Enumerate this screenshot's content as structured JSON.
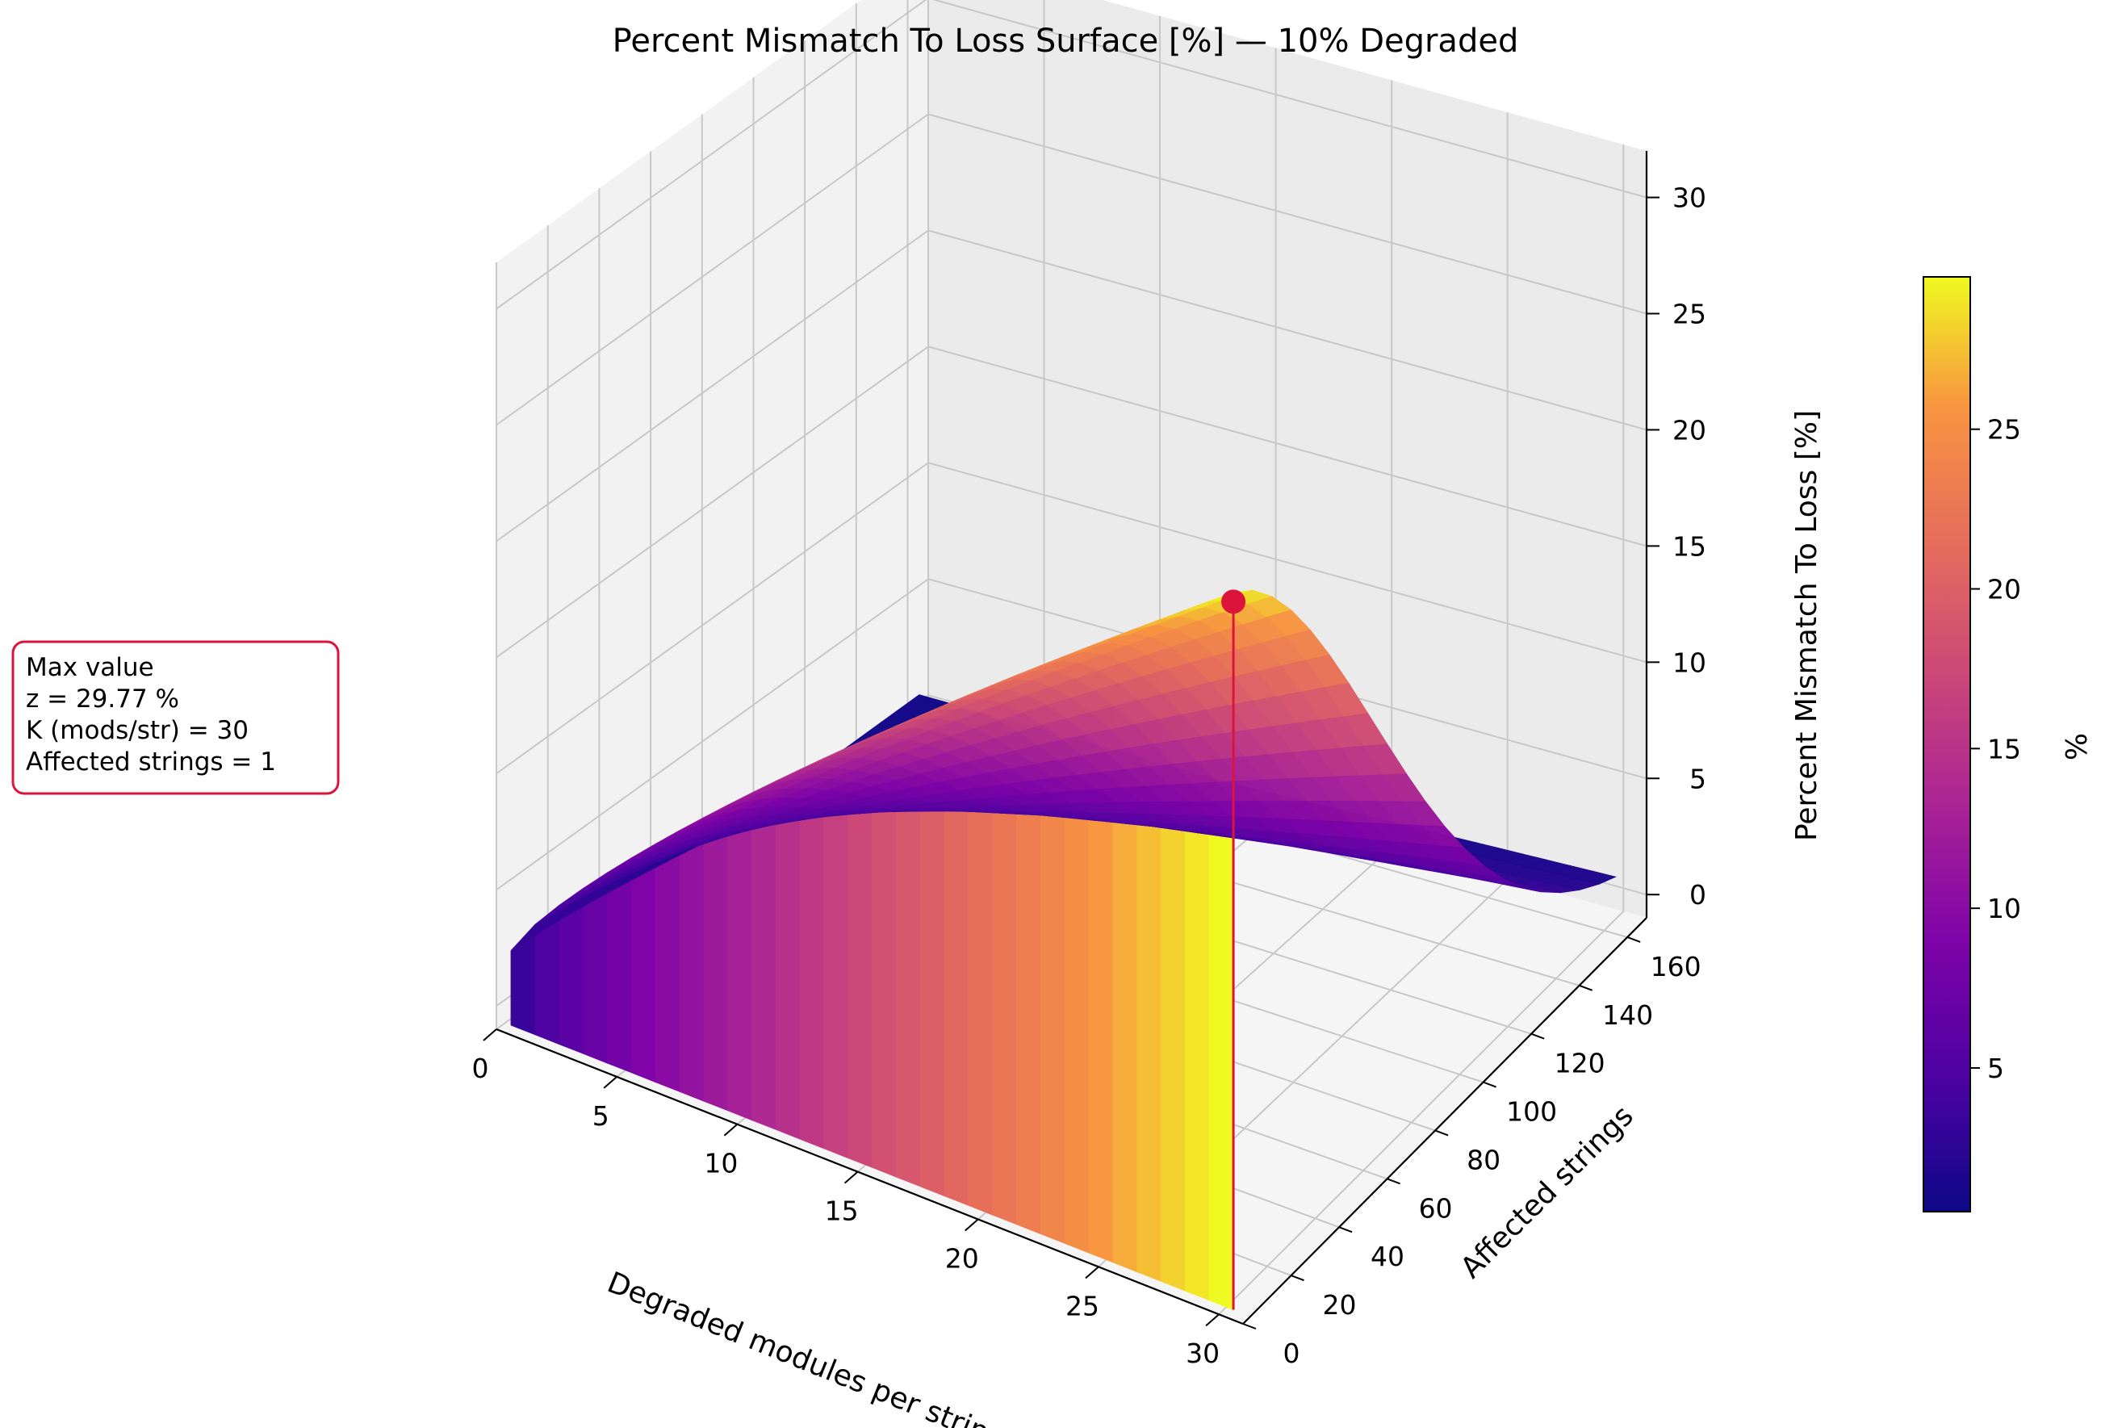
{
  "chart_data": {
    "type": "surface3d",
    "title": "Percent Mismatch To Loss Surface [%] — 10% Degraded",
    "xlabel": "Degraded modules per string",
    "ylabel": "Affected strings",
    "zlabel": "Percent Mismatch To Loss [%]",
    "xlim": [
      0,
      31
    ],
    "ylim": [
      0,
      168
    ],
    "zlim": [
      0,
      32
    ],
    "xticks": [
      0,
      5,
      10,
      15,
      20,
      25,
      30
    ],
    "yticks": [
      0,
      20,
      40,
      60,
      80,
      100,
      120,
      140,
      160
    ],
    "zticks": [
      0,
      5,
      10,
      15,
      20,
      25,
      30
    ],
    "colormap": "plasma",
    "colorbar": {
      "label": "%",
      "ticks": [
        5,
        10,
        15,
        20,
        25
      ],
      "range": [
        0.5,
        29.77
      ]
    },
    "max_point": {
      "x": 30,
      "y": 1,
      "z": 29.77,
      "color": "#dc143c"
    },
    "annotation": {
      "lines": [
        "Max value",
        "z = 29.77 %",
        "K (mods/str) = 30",
        "Affected strings = 1"
      ],
      "border_color": "#dc143c"
    },
    "grid": true,
    "pane_color": "#f2f2f2"
  }
}
